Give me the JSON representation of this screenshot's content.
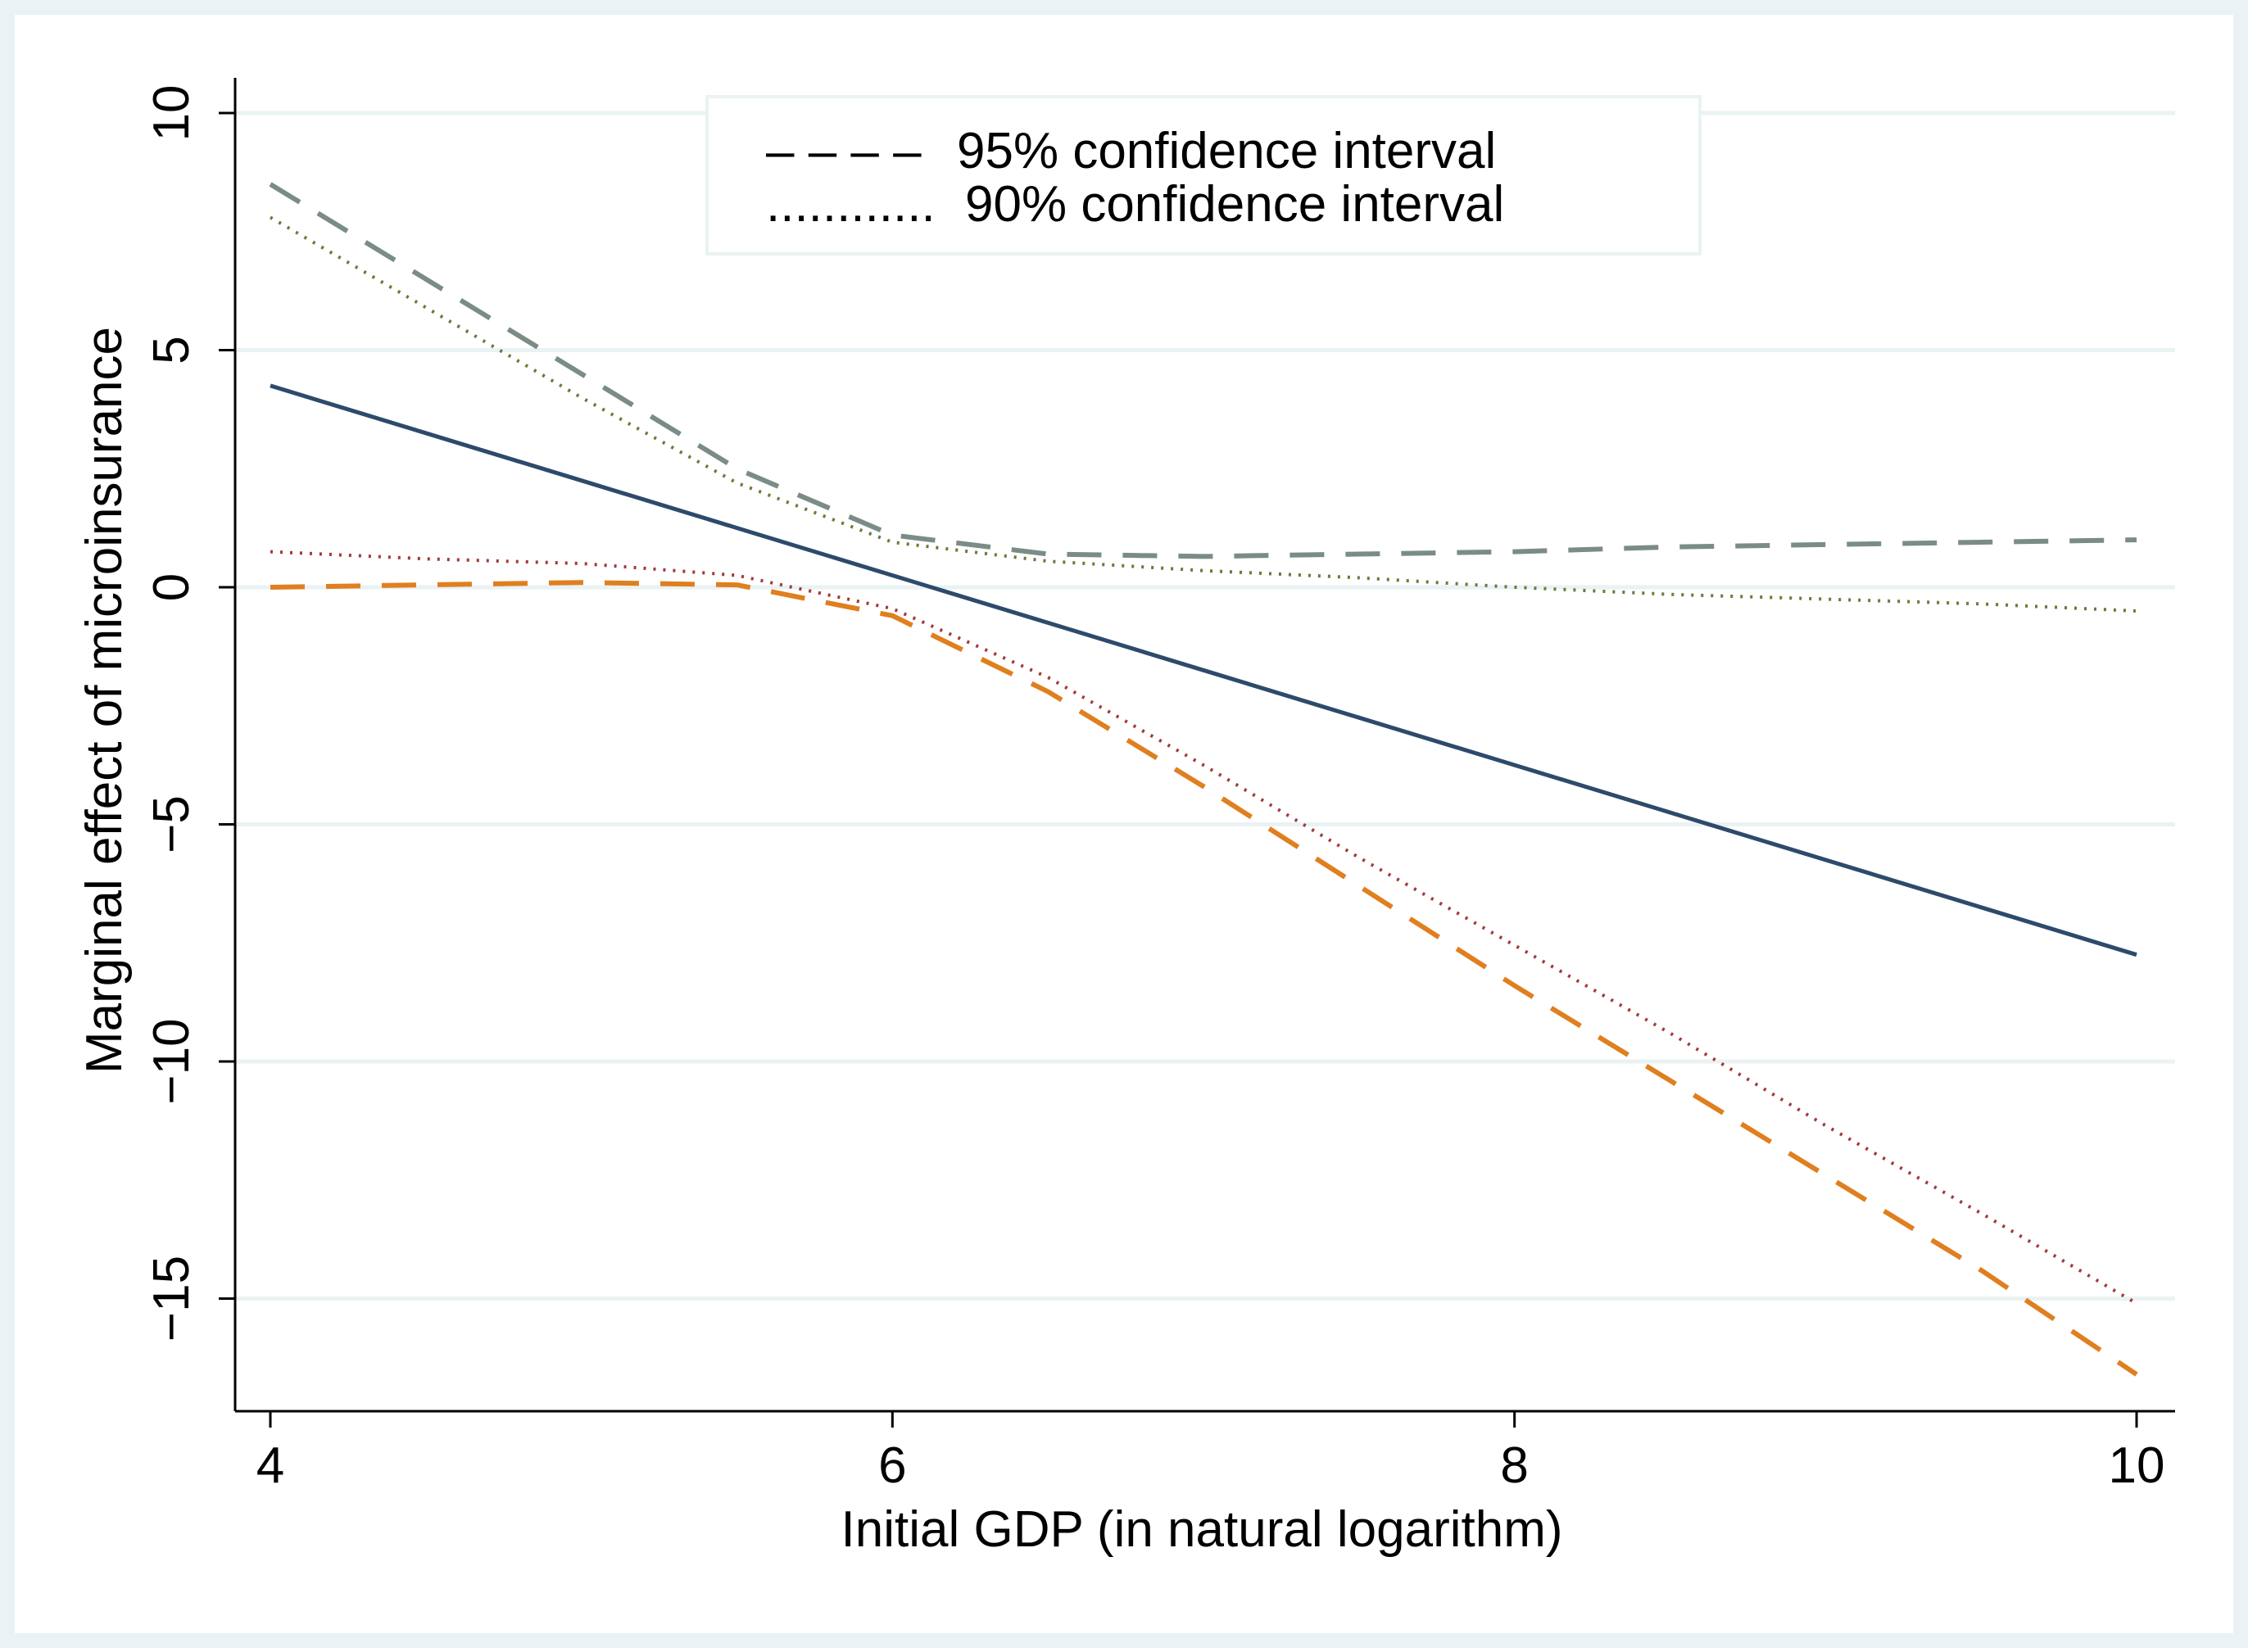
{
  "colors": {
    "outer_bg": "#eaf2f3",
    "plot_bg": "#ffffff",
    "grid": "#eaf2f3",
    "axis": "#000000",
    "estimate": "#2e4a6b",
    "upper95": "#7a8c86",
    "lower95": "#e07f1f",
    "upper90": "#6b7a3a",
    "lower90": "#a23a3a"
  },
  "chart_data": {
    "type": "line",
    "title": "",
    "xlabel": "Initial GDP (in natural logarithm)",
    "ylabel": "Marginal effect of microinsurance",
    "xlim": [
      4,
      10
    ],
    "ylim": [
      -17.2,
      10
    ],
    "x_ticks": [
      4,
      6,
      8,
      10
    ],
    "x_tick_labels": [
      "4",
      "6",
      "8",
      "10"
    ],
    "y_ticks": [
      10,
      5,
      0,
      -5,
      -10,
      -15
    ],
    "y_tick_labels": [
      "10",
      "5",
      "0",
      "−5",
      "−10",
      "−15"
    ],
    "grid": true,
    "legend": {
      "position": "top-center",
      "entries": [
        {
          "symbol": "– – – –",
          "label": "95% confidence interval"
        },
        {
          "symbol": "............",
          "label": "90% confidence interval"
        }
      ]
    },
    "x": [
      4,
      4.5,
      5,
      5.5,
      6,
      6.5,
      7,
      7.5,
      8,
      8.5,
      9,
      9.5,
      10
    ],
    "series": [
      {
        "name": "Marginal effect",
        "style": "solid",
        "values": [
          4.25,
          3.25,
          2.25,
          1.25,
          0.25,
          -0.75,
          -1.75,
          -2.75,
          -3.75,
          -4.75,
          -5.75,
          -6.75,
          -7.75
        ]
      },
      {
        "name": "Upper 95% CI",
        "style": "dashed",
        "values": [
          8.5,
          6.5,
          4.5,
          2.5,
          1.1,
          0.7,
          0.65,
          0.7,
          0.75,
          0.85,
          0.9,
          0.95,
          1.0
        ]
      },
      {
        "name": "Lower 95% CI",
        "style": "dashed",
        "values": [
          0.0,
          0.05,
          0.1,
          0.05,
          -0.6,
          -2.2,
          -4.2,
          -6.3,
          -8.4,
          -10.4,
          -12.4,
          -14.4,
          -16.6
        ]
      },
      {
        "name": "Upper 90% CI",
        "style": "dotted",
        "values": [
          7.8,
          5.9,
          4.0,
          2.2,
          0.95,
          0.55,
          0.35,
          0.2,
          0.0,
          -0.15,
          -0.25,
          -0.35,
          -0.5
        ]
      },
      {
        "name": "Lower 90% CI",
        "style": "dotted",
        "values": [
          0.75,
          0.6,
          0.5,
          0.25,
          -0.45,
          -1.9,
          -3.75,
          -5.7,
          -7.55,
          -9.4,
          -11.35,
          -13.2,
          -15.1
        ]
      }
    ]
  }
}
